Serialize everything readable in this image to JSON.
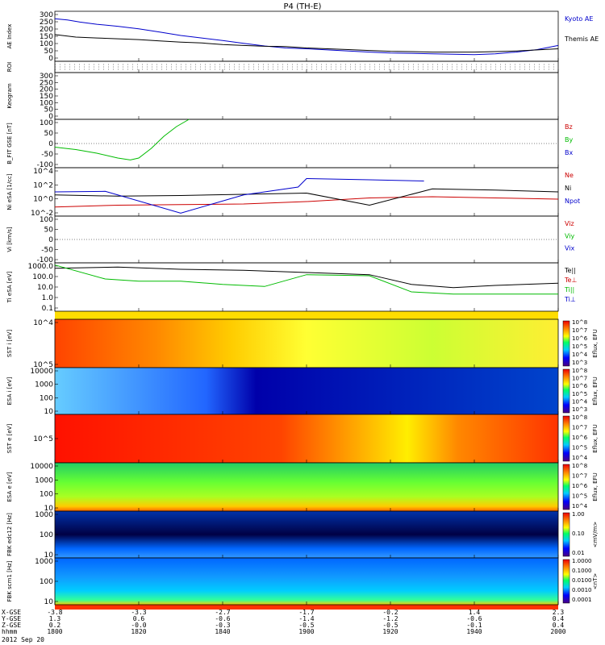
{
  "chart_data": {
    "type": "line",
    "title": "P4 (TH-E)",
    "date_label": "2012 Sep 20",
    "time_ticks": [
      "1800",
      "1820",
      "1840",
      "1900",
      "1920",
      "1940",
      "2000"
    ],
    "time_range": [
      1800,
      2000
    ],
    "footer_rows": [
      {
        "label": "X-GSE",
        "values": [
          "-3.8",
          "-3.3",
          "-2.7",
          "-1.7",
          "-0.2",
          "1.4",
          "2.3"
        ]
      },
      {
        "label": "Y-GSE",
        "values": [
          "1.3",
          "0.6",
          "-0.6",
          "-1.4",
          "-1.2",
          "-0.6",
          "0.4"
        ]
      },
      {
        "label": "Z-GSE",
        "values": [
          "0.2",
          "-0.0",
          "-0.3",
          "-0.5",
          "-0.5",
          "-0.1",
          "0.4"
        ]
      },
      {
        "label": "hhmm",
        "values": [
          "1800",
          "1820",
          "1840",
          "1900",
          "1920",
          "1940",
          "2000"
        ]
      }
    ],
    "panels": [
      {
        "id": "ae",
        "ylabel": "AE Index",
        "yticks": [
          "300",
          "250",
          "200",
          "150",
          "100",
          "50",
          "0"
        ],
        "ylim": [
          0,
          300
        ],
        "series": [
          {
            "name": "Kyoto AE",
            "color": "#0000cc",
            "x": [
              1800,
              1803,
              1806,
              1810,
              1815,
              1820,
              1825,
              1830,
              1835,
              1840,
              1845,
              1850,
              1855,
              1900,
              1905,
              1910,
              1915,
              1920,
              1925,
              1930,
              1935,
              1940,
              1945,
              1950,
              1955,
              2000
            ],
            "y": [
              255,
              248,
              235,
              222,
              210,
              195,
              175,
              155,
              140,
              125,
              108,
              92,
              80,
              75,
              68,
              62,
              55,
              50,
              48,
              45,
              42,
              40,
              45,
              55,
              70,
              95
            ]
          },
          {
            "name": "Themis AE",
            "color": "#000000",
            "x": [
              1800,
              1805,
              1810,
              1815,
              1820,
              1825,
              1830,
              1835,
              1840,
              1845,
              1850,
              1855,
              1900,
              1905,
              1910,
              1915,
              1920,
              1925,
              1930,
              1935,
              1940,
              1945,
              1950,
              1955,
              2000
            ],
            "y": [
              160,
              145,
              140,
              135,
              130,
              122,
              115,
              110,
              100,
              95,
              90,
              88,
              80,
              75,
              70,
              65,
              60,
              58,
              55,
              55,
              55,
              58,
              62,
              68,
              75
            ]
          }
        ]
      },
      {
        "id": "roi",
        "ylabel": "ROI",
        "yticks": [],
        "ylim": [
          0,
          1
        ],
        "series": []
      },
      {
        "id": "kp",
        "ylabel": "Keogram",
        "yticks": [
          "300",
          "250",
          "200",
          "150",
          "100",
          "50",
          "0"
        ],
        "ylim": [
          0,
          300
        ],
        "series": []
      },
      {
        "id": "bfit",
        "ylabel": "B_FIT GSE [nT]",
        "yticks": [
          "100",
          "50",
          "0",
          "-50",
          "-100"
        ],
        "ylim": [
          -100,
          100
        ],
        "series": [
          {
            "name": "Bz",
            "color": "#cc0000",
            "x": [],
            "y": []
          },
          {
            "name": "By",
            "color": "#00bb00",
            "x": [
              1800,
              1805,
              1810,
              1815,
              1818,
              1820,
              1823,
              1826,
              1829,
              1832
            ],
            "y": [
              -15,
              -25,
              -40,
              -60,
              -68,
              -60,
              -20,
              30,
              70,
              100
            ]
          },
          {
            "name": "Bx",
            "color": "#0000cc",
            "x": [],
            "y": []
          }
        ]
      },
      {
        "id": "ni",
        "ylabel": "Ni eSA [1/cc]",
        "yticks": [
          "10^4",
          "10^2",
          "10^0",
          "10^-2"
        ],
        "ylim": [
          -3,
          5
        ],
        "series": [
          {
            "name": "Ne",
            "color": "#cc0000",
            "x": [
              1800,
              1815,
              1830,
              1845,
              1900,
              1915,
              1930,
              1945,
              2000
            ],
            "y": [
              -1.5,
              -1.2,
              -1.1,
              -1.0,
              -0.6,
              0.0,
              0.2,
              0.0,
              -0.2
            ]
          },
          {
            "name": "Ni",
            "color": "#000000",
            "x": [
              1800,
              1815,
              1830,
              1845,
              1900,
              1915,
              1930,
              1945,
              2000
            ],
            "y": [
              0.5,
              0.3,
              0.4,
              0.6,
              0.8,
              -1.2,
              1.5,
              1.3,
              1.0
            ]
          },
          {
            "name": "Npot",
            "color": "#0000cc",
            "x": [
              1800,
              1812,
              1830,
              1845,
              1858,
              1900,
              1915,
              1928
            ],
            "y": [
              1.0,
              1.1,
              -2.5,
              0.5,
              1.8,
              3.2,
              3.0,
              2.8
            ]
          }
        ]
      },
      {
        "id": "vi",
        "ylabel": "Vi [km/s]",
        "yticks": [
          "100",
          "50",
          "0",
          "-50",
          "-100"
        ],
        "ylim": [
          -100,
          100
        ],
        "series": [
          {
            "name": "Viz",
            "color": "#cc0000",
            "x": [],
            "y": []
          },
          {
            "name": "Viy",
            "color": "#00bb00",
            "x": [],
            "y": []
          },
          {
            "name": "Vix",
            "color": "#0000cc",
            "x": [],
            "y": []
          }
        ]
      },
      {
        "id": "ti",
        "ylabel": "Ti eSA [eV]",
        "yticks": [
          "1000.0",
          "100.0",
          "10.0",
          "1.0",
          "0.1"
        ],
        "ylim": [
          -1,
          3.5
        ],
        "series": [
          {
            "name": "Te||",
            "color": "#000000",
            "x": [
              1800,
              1815,
              1830,
              1845,
              1900,
              1915,
              1925,
              1935,
              1945,
              2000
            ],
            "y": [
              3.0,
              3.1,
              2.9,
              2.8,
              2.6,
              2.4,
              1.5,
              1.2,
              1.4,
              1.6
            ]
          },
          {
            "name": "Te⊥",
            "color": "#cc0000",
            "x": [],
            "y": []
          },
          {
            "name": "Ti||",
            "color": "#00bb00",
            "x": [
              1800,
              1812,
              1820,
              1830,
              1840,
              1850,
              1900,
              1915,
              1925,
              1935,
              1945,
              2000
            ],
            "y": [
              3.3,
              2.0,
              1.8,
              1.8,
              1.5,
              1.3,
              2.4,
              2.3,
              0.8,
              0.6,
              0.6,
              0.6
            ]
          },
          {
            "name": "Ti⊥",
            "color": "#0000cc",
            "x": [],
            "y": []
          }
        ]
      },
      {
        "id": "sst_i",
        "ylabel": "SST i [eV]",
        "yticks": [
          "10^4",
          "10^5"
        ],
        "kind": "spectrogram",
        "colorbar_ticks": [
          "10^8",
          "10^7",
          "10^6",
          "10^5",
          "10^4",
          "10^3"
        ],
        "colorbar_label": "Eflux, EFU"
      },
      {
        "id": "esa_i",
        "ylabel": "ESA i [eV]",
        "yticks": [
          "10000",
          "1000",
          "100",
          "10"
        ],
        "kind": "spectrogram",
        "colorbar_ticks": [
          "10^8",
          "10^7",
          "10^6",
          "10^5",
          "10^4",
          "10^3"
        ],
        "colorbar_label": "Eflux, EFU"
      },
      {
        "id": "sst_e",
        "ylabel": "SST e [eV]",
        "yticks": [
          "10^5"
        ],
        "kind": "spectrogram",
        "colorbar_ticks": [
          "10^8",
          "10^7",
          "10^6",
          "10^5",
          "10^4"
        ],
        "colorbar_label": "Eflux, EFU"
      },
      {
        "id": "esa_e",
        "ylabel": "ESA e [eV]",
        "yticks": [
          "10000",
          "1000",
          "100",
          "10"
        ],
        "kind": "spectrogram",
        "colorbar_ticks": [
          "10^8",
          "10^7",
          "10^6",
          "10^5",
          "10^4"
        ],
        "colorbar_label": "Eflux, EFU"
      },
      {
        "id": "fbk_e",
        "ylabel": "FBK edc12 [Hz]",
        "yticks": [
          "1000",
          "100",
          "10"
        ],
        "kind": "spectrogram",
        "colorbar_ticks": [
          "1.00",
          "0.10",
          "0.01"
        ],
        "colorbar_label": "<mV/m>"
      },
      {
        "id": "fbk_b",
        "ylabel": "FBK scm1 [Hz]",
        "yticks": [
          "1000",
          "100",
          "10"
        ],
        "kind": "spectrogram",
        "colorbar_ticks": [
          "1.0000",
          "0.1000",
          "0.0100",
          "0.0010",
          "0.0001"
        ],
        "colorbar_label": "<nT>"
      }
    ]
  }
}
